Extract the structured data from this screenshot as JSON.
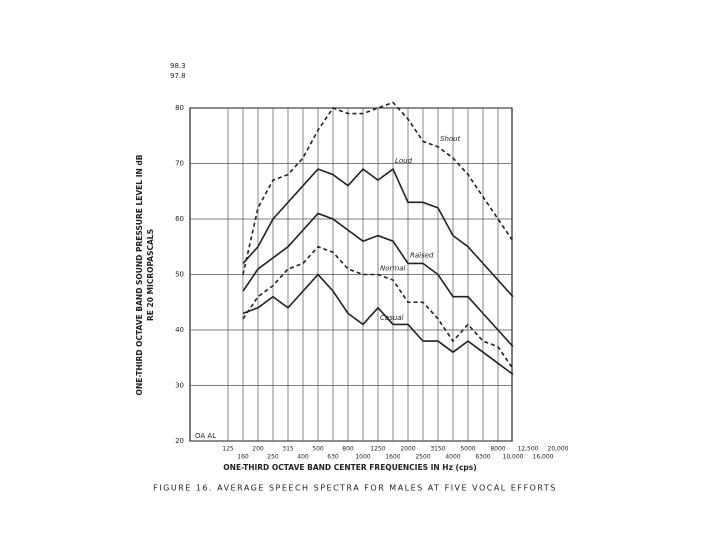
{
  "chart_data": {
    "type": "line",
    "title": "FIGURE 16.  AVERAGE SPEECH SPECTRA FOR MALES AT FIVE VOCAL EFFORTS",
    "x_label": "ONE-THIRD OCTAVE BAND CENTER FREQUENCIES IN Hz (cps)",
    "y_label": [
      "ONE-THIRD OCTAVE BAND SOUND PRESSURE LEVEL IN dB",
      "RE 20 MICROPASCALS"
    ],
    "annotations": [
      "98.3",
      "97.8",
      "OA AL"
    ],
    "categories": [
      "125",
      "160",
      "200",
      "250",
      "315",
      "400",
      "500",
      "630",
      "800",
      "1000",
      "1250",
      "1600",
      "2000",
      "2500",
      "3150",
      "4000",
      "5000",
      "6300",
      "8000",
      "10,000",
      "12,500",
      "16,000",
      "20,000"
    ],
    "ylim": [
      20,
      80
    ],
    "yticks": [
      20,
      30,
      40,
      50,
      60,
      70,
      80
    ],
    "grid": true,
    "series": [
      {
        "name": "Shout",
        "color": "#222222",
        "dashed": true,
        "values": [
          null,
          50,
          62,
          67,
          68,
          71,
          76,
          80,
          79,
          79,
          80,
          81,
          78,
          74,
          73,
          71,
          68,
          64,
          60,
          56,
          null,
          null,
          null
        ]
      },
      {
        "name": "Loud",
        "color": "#222222",
        "dashed": false,
        "values": [
          null,
          52,
          55,
          60,
          63,
          66,
          69,
          68,
          66,
          69,
          67,
          69,
          63,
          63,
          62,
          57,
          55,
          52,
          49,
          46,
          null,
          null,
          null
        ]
      },
      {
        "name": "Raised",
        "color": "#222222",
        "dashed": false,
        "values": [
          null,
          47,
          51,
          53,
          55,
          58,
          61,
          60,
          58,
          56,
          57,
          56,
          52,
          52,
          50,
          46,
          46,
          43,
          40,
          37,
          null,
          null,
          null
        ]
      },
      {
        "name": "Normal",
        "color": "#222222",
        "dashed": true,
        "values": [
          null,
          42,
          46,
          48,
          51,
          52,
          55,
          54,
          51,
          50,
          50,
          49,
          45,
          45,
          42,
          38,
          41,
          38,
          37,
          33,
          null,
          null,
          null
        ]
      },
      {
        "name": "Casual",
        "color": "#222222",
        "dashed": false,
        "values": [
          null,
          43,
          44,
          46,
          44,
          47,
          50,
          47,
          43,
          41,
          44,
          41,
          41,
          38,
          38,
          36,
          38,
          36,
          34,
          32,
          null,
          null,
          null
        ]
      }
    ]
  }
}
